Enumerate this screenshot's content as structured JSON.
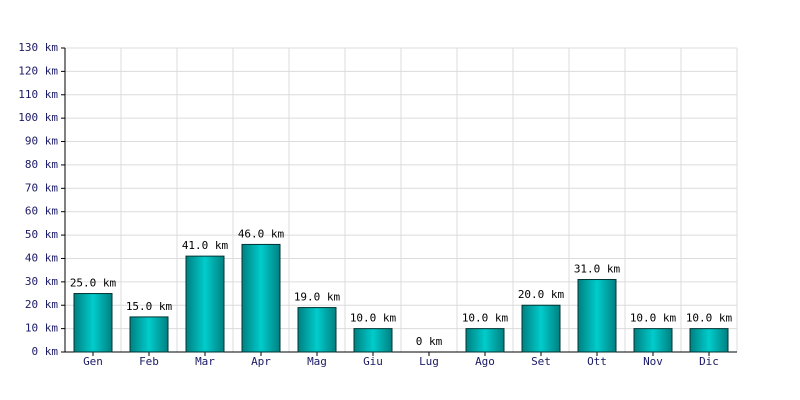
{
  "chart_data": {
    "type": "bar",
    "categories": [
      "Gen",
      "Feb",
      "Mar",
      "Apr",
      "Mag",
      "Giu",
      "Lug",
      "Ago",
      "Set",
      "Ott",
      "Nov",
      "Dic"
    ],
    "values": [
      25,
      15,
      41,
      46,
      19,
      10,
      0,
      10,
      20,
      31,
      10,
      10
    ],
    "value_labels": [
      "25.0 km",
      "15.0 km",
      "41.0 km",
      "46.0 km",
      "19.0 km",
      "10.0 km",
      "0 km",
      "10.0 km",
      "20.0 km",
      "31.0 km",
      "10.0 km",
      "10.0 km"
    ],
    "color": "#00cccc",
    "ylim": [
      0,
      130
    ],
    "yticks": [
      {
        "value": 0,
        "label": "0 km"
      },
      {
        "value": 10,
        "label": "10 km"
      },
      {
        "value": 20,
        "label": "20 km"
      },
      {
        "value": 30,
        "label": "30 km"
      },
      {
        "value": 40,
        "label": "40 km"
      },
      {
        "value": 50,
        "label": "50 km"
      },
      {
        "value": 60,
        "label": "60 km"
      },
      {
        "value": 70,
        "label": "70 km"
      },
      {
        "value": 80,
        "label": "80 km"
      },
      {
        "value": 90,
        "label": "90 km"
      },
      {
        "value": 100,
        "label": "100 km"
      },
      {
        "value": 110,
        "label": "110 km"
      },
      {
        "value": 120,
        "label": "120 km"
      },
      {
        "value": 130,
        "label": "130 km"
      }
    ],
    "grid": true
  }
}
